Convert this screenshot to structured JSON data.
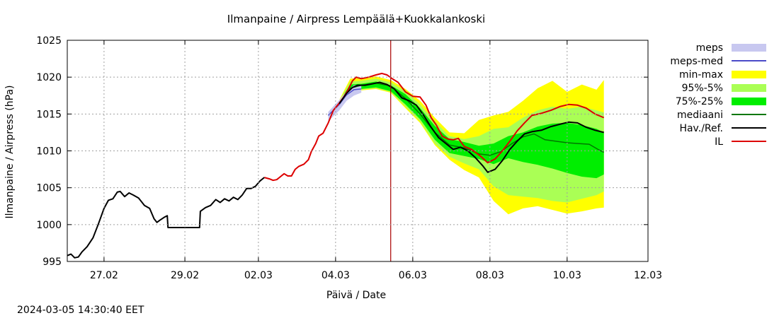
{
  "chart_data": {
    "type": "line",
    "title": "Ilmanpaine / Airpress Lempäälä+Kuokkalankoski",
    "xlabel": "Päivä / Date",
    "ylabel": "Ilmanpaine / Airpress (hPa)",
    "timestamp": "2024-03-05 14:30:40 EET",
    "xlim_days": [
      0,
      7.9
    ],
    "ylim": [
      995,
      1025
    ],
    "y_ticks": [
      995,
      1000,
      1005,
      1010,
      1015,
      1020,
      1025
    ],
    "x_ticks": [
      {
        "label": "27.02",
        "t": 0.5
      },
      {
        "label": "29.02",
        "t": 1.6
      },
      {
        "label": "02.03",
        "t": 2.6
      },
      {
        "label": "04.03",
        "t": 3.65
      },
      {
        "label": "06.03",
        "t": 4.7
      },
      {
        "label": "08.03",
        "t": 5.75
      },
      {
        "label": "10.03",
        "t": 6.8
      },
      {
        "label": "12.03",
        "t": 7.9
      }
    ],
    "grid": true,
    "legend_position": "outside-right",
    "current_time_t": 4.4,
    "colors": {
      "meps": "#c8c8f0",
      "meps_med": "#4a4ac8",
      "min_max": "#ffff00",
      "p95_5": "#aaff55",
      "p75_25": "#00ee00",
      "median": "#007700",
      "observed": "#000000",
      "il": "#dd0000",
      "now_line": "#aa0000"
    },
    "legend": [
      {
        "key": "meps",
        "label": "meps",
        "style": "band",
        "color": "#c8c8f0"
      },
      {
        "key": "meps_med",
        "label": "meps-med",
        "style": "line",
        "color": "#4a4ac8"
      },
      {
        "key": "min_max",
        "label": "min-max",
        "style": "band",
        "color": "#ffff00"
      },
      {
        "key": "p95_5",
        "label": "95%-5%",
        "style": "band",
        "color": "#aaff55"
      },
      {
        "key": "p75_25",
        "label": "75%-25%",
        "style": "band",
        "color": "#00ee00"
      },
      {
        "key": "median",
        "label": "mediaani",
        "style": "line",
        "color": "#007700"
      },
      {
        "key": "observed",
        "label": "Hav./Ref.",
        "style": "line",
        "color": "#000000"
      },
      {
        "key": "il",
        "label": "IL",
        "style": "line",
        "color": "#dd0000"
      }
    ],
    "series": {
      "observed": [
        [
          0.0,
          995.8
        ],
        [
          0.05,
          996.0
        ],
        [
          0.1,
          995.5
        ],
        [
          0.15,
          995.6
        ],
        [
          0.2,
          996.3
        ],
        [
          0.27,
          997.0
        ],
        [
          0.35,
          998.2
        ],
        [
          0.42,
          1000.0
        ],
        [
          0.5,
          1002.2
        ],
        [
          0.56,
          1003.3
        ],
        [
          0.62,
          1003.5
        ],
        [
          0.68,
          1004.4
        ],
        [
          0.72,
          1004.5
        ],
        [
          0.78,
          1003.8
        ],
        [
          0.84,
          1004.3
        ],
        [
          0.9,
          1004.0
        ],
        [
          0.97,
          1003.6
        ],
        [
          1.05,
          1002.6
        ],
        [
          1.12,
          1002.2
        ],
        [
          1.18,
          1000.8
        ],
        [
          1.22,
          1000.3
        ],
        [
          1.26,
          1000.6
        ],
        [
          1.32,
          1001.0
        ],
        [
          1.36,
          1001.2
        ],
        [
          1.37,
          999.6
        ],
        [
          1.5,
          999.6
        ],
        [
          1.65,
          999.6
        ],
        [
          1.8,
          999.6
        ],
        [
          1.81,
          1001.8
        ],
        [
          1.88,
          1002.3
        ],
        [
          1.95,
          1002.6
        ],
        [
          2.02,
          1003.4
        ],
        [
          2.08,
          1003.0
        ],
        [
          2.14,
          1003.5
        ],
        [
          2.2,
          1003.2
        ],
        [
          2.26,
          1003.7
        ],
        [
          2.32,
          1003.4
        ],
        [
          2.38,
          1004.0
        ],
        [
          2.44,
          1004.9
        ],
        [
          2.5,
          1004.9
        ],
        [
          2.56,
          1005.2
        ],
        [
          2.62,
          1005.9
        ],
        [
          2.68,
          1006.4
        ]
      ],
      "il": [
        [
          2.68,
          1006.4
        ],
        [
          2.75,
          1006.2
        ],
        [
          2.8,
          1006.0
        ],
        [
          2.85,
          1006.1
        ],
        [
          2.9,
          1006.5
        ],
        [
          2.95,
          1006.9
        ],
        [
          3.0,
          1006.6
        ],
        [
          3.05,
          1006.6
        ],
        [
          3.1,
          1007.5
        ],
        [
          3.15,
          1007.9
        ],
        [
          3.22,
          1008.2
        ],
        [
          3.28,
          1008.8
        ],
        [
          3.32,
          1009.9
        ],
        [
          3.38,
          1011.0
        ],
        [
          3.42,
          1012.0
        ],
        [
          3.48,
          1012.4
        ],
        [
          3.55,
          1013.8
        ],
        [
          3.62,
          1015.5
        ],
        [
          3.7,
          1016.5
        ],
        [
          3.76,
          1017.3
        ],
        [
          3.82,
          1018.3
        ],
        [
          3.88,
          1019.5
        ],
        [
          3.93,
          1020.0
        ],
        [
          4.0,
          1019.8
        ],
        [
          4.1,
          1020.0
        ],
        [
          4.2,
          1020.3
        ],
        [
          4.28,
          1020.5
        ],
        [
          4.35,
          1020.3
        ],
        [
          4.42,
          1019.8
        ],
        [
          4.5,
          1019.3
        ],
        [
          4.6,
          1018.0
        ],
        [
          4.7,
          1017.4
        ],
        [
          4.8,
          1017.3
        ],
        [
          4.88,
          1016.2
        ],
        [
          4.95,
          1014.5
        ],
        [
          5.02,
          1013.5
        ],
        [
          5.1,
          1012.0
        ],
        [
          5.18,
          1011.6
        ],
        [
          5.25,
          1011.5
        ],
        [
          5.32,
          1011.7
        ],
        [
          5.4,
          1010.6
        ],
        [
          5.5,
          1010.2
        ],
        [
          5.62,
          1009.3
        ],
        [
          5.72,
          1008.4
        ],
        [
          5.82,
          1008.9
        ],
        [
          5.92,
          1010.0
        ],
        [
          6.02,
          1011.3
        ],
        [
          6.12,
          1012.7
        ],
        [
          6.22,
          1013.8
        ],
        [
          6.32,
          1014.8
        ],
        [
          6.45,
          1015.1
        ],
        [
          6.58,
          1015.5
        ],
        [
          6.7,
          1016.0
        ],
        [
          6.82,
          1016.3
        ],
        [
          6.94,
          1016.2
        ],
        [
          7.06,
          1015.8
        ],
        [
          7.18,
          1015.0
        ],
        [
          7.3,
          1014.5
        ]
      ],
      "forecast_observed": [
        [
          3.7,
          1016.4
        ],
        [
          3.8,
          1017.8
        ],
        [
          3.88,
          1018.6
        ],
        [
          3.95,
          1018.9
        ],
        [
          4.05,
          1018.9
        ],
        [
          4.15,
          1019.1
        ],
        [
          4.25,
          1019.3
        ],
        [
          4.35,
          1019.0
        ],
        [
          4.45,
          1018.4
        ],
        [
          4.55,
          1017.2
        ],
        [
          4.65,
          1016.8
        ],
        [
          4.75,
          1016.2
        ],
        [
          4.85,
          1014.8
        ],
        [
          4.95,
          1013.2
        ],
        [
          5.05,
          1011.8
        ],
        [
          5.15,
          1011.0
        ],
        [
          5.25,
          1010.2
        ],
        [
          5.35,
          1010.5
        ],
        [
          5.45,
          1010.0
        ],
        [
          5.55,
          1009.1
        ],
        [
          5.65,
          1008.0
        ],
        [
          5.72,
          1007.1
        ],
        [
          5.82,
          1007.5
        ],
        [
          5.92,
          1008.7
        ],
        [
          6.02,
          1010.2
        ],
        [
          6.12,
          1011.3
        ],
        [
          6.22,
          1012.3
        ],
        [
          6.32,
          1012.6
        ],
        [
          6.45,
          1012.8
        ],
        [
          6.58,
          1013.3
        ],
        [
          6.7,
          1013.6
        ],
        [
          6.82,
          1013.9
        ],
        [
          6.94,
          1013.8
        ],
        [
          7.06,
          1013.2
        ],
        [
          7.18,
          1012.8
        ],
        [
          7.3,
          1012.5
        ]
      ],
      "median": [
        [
          3.7,
          1016.4
        ],
        [
          3.85,
          1018.5
        ],
        [
          4.0,
          1018.9
        ],
        [
          4.2,
          1019.2
        ],
        [
          4.4,
          1018.8
        ],
        [
          4.6,
          1017.1
        ],
        [
          4.8,
          1015.0
        ],
        [
          5.0,
          1012.5
        ],
        [
          5.2,
          1010.8
        ],
        [
          5.4,
          1010.4
        ],
        [
          5.6,
          1009.6
        ],
        [
          5.75,
          1009.4
        ],
        [
          5.9,
          1009.9
        ],
        [
          6.05,
          1011.0
        ],
        [
          6.2,
          1011.9
        ],
        [
          6.35,
          1012.3
        ],
        [
          6.5,
          1011.5
        ],
        [
          6.65,
          1011.3
        ],
        [
          6.8,
          1011.1
        ],
        [
          6.95,
          1011.0
        ],
        [
          7.1,
          1010.9
        ],
        [
          7.22,
          1010.2
        ],
        [
          7.3,
          1009.8
        ]
      ],
      "meps_med": [
        [
          3.55,
          1014.8
        ],
        [
          3.7,
          1016.3
        ],
        [
          3.8,
          1017.6
        ],
        [
          3.9,
          1018.3
        ],
        [
          4.0,
          1018.4
        ]
      ]
    },
    "bands": {
      "meps": [
        [
          3.55,
          1014.0,
          1015.3
        ],
        [
          3.7,
          1015.5,
          1016.9
        ],
        [
          3.8,
          1016.8,
          1018.1
        ],
        [
          3.9,
          1017.5,
          1018.9
        ],
        [
          4.0,
          1017.9,
          1019.0
        ]
      ],
      "min_max": [
        [
          3.7,
          1016.0,
          1016.9
        ],
        [
          3.85,
          1018.0,
          1019.8
        ],
        [
          4.0,
          1018.2,
          1019.9
        ],
        [
          4.2,
          1018.4,
          1020.1
        ],
        [
          4.4,
          1017.9,
          1019.6
        ],
        [
          4.6,
          1015.8,
          1018.4
        ],
        [
          4.8,
          1013.8,
          1016.8
        ],
        [
          5.0,
          1010.8,
          1014.5
        ],
        [
          5.2,
          1008.8,
          1012.5
        ],
        [
          5.4,
          1007.4,
          1012.4
        ],
        [
          5.6,
          1006.4,
          1014.2
        ],
        [
          5.8,
          1003.2,
          1014.8
        ],
        [
          6.0,
          1001.4,
          1015.3
        ],
        [
          6.2,
          1002.2,
          1016.8
        ],
        [
          6.4,
          1002.5,
          1018.5
        ],
        [
          6.6,
          1002.0,
          1019.5
        ],
        [
          6.8,
          1001.5,
          1018.0
        ],
        [
          7.0,
          1001.8,
          1019.0
        ],
        [
          7.2,
          1002.2,
          1018.3
        ],
        [
          7.3,
          1002.3,
          1019.6
        ]
      ],
      "p95_5": [
        [
          3.7,
          1016.1,
          1016.8
        ],
        [
          3.85,
          1018.1,
          1019.4
        ],
        [
          4.0,
          1018.3,
          1019.5
        ],
        [
          4.2,
          1018.5,
          1019.8
        ],
        [
          4.4,
          1018.0,
          1019.3
        ],
        [
          4.6,
          1016.0,
          1018.1
        ],
        [
          4.8,
          1014.0,
          1016.3
        ],
        [
          5.0,
          1011.0,
          1014.0
        ],
        [
          5.2,
          1009.2,
          1012.0
        ],
        [
          5.4,
          1008.3,
          1011.6
        ],
        [
          5.6,
          1007.5,
          1012.0
        ],
        [
          5.8,
          1005.2,
          1013.0
        ],
        [
          6.0,
          1004.0,
          1013.2
        ],
        [
          6.2,
          1003.8,
          1014.5
        ],
        [
          6.4,
          1003.6,
          1015.5
        ],
        [
          6.6,
          1003.2,
          1016.0
        ],
        [
          6.8,
          1003.0,
          1015.7
        ],
        [
          7.0,
          1003.5,
          1016.0
        ],
        [
          7.2,
          1004.0,
          1015.5
        ],
        [
          7.3,
          1004.5,
          1015.2
        ]
      ],
      "p75_25": [
        [
          3.7,
          1016.2,
          1016.7
        ],
        [
          3.85,
          1018.2,
          1019.0
        ],
        [
          4.0,
          1018.4,
          1019.1
        ],
        [
          4.2,
          1018.6,
          1019.4
        ],
        [
          4.4,
          1018.1,
          1018.9
        ],
        [
          4.6,
          1016.3,
          1017.7
        ],
        [
          4.8,
          1014.3,
          1015.8
        ],
        [
          5.0,
          1011.5,
          1013.4
        ],
        [
          5.2,
          1009.7,
          1011.6
        ],
        [
          5.4,
          1009.3,
          1011.2
        ],
        [
          5.6,
          1008.9,
          1010.7
        ],
        [
          5.8,
          1008.2,
          1011.0
        ],
        [
          6.0,
          1009.0,
          1012.0
        ],
        [
          6.2,
          1008.5,
          1012.5
        ],
        [
          6.4,
          1008.1,
          1013.3
        ],
        [
          6.6,
          1007.6,
          1013.7
        ],
        [
          6.8,
          1007.0,
          1013.8
        ],
        [
          7.0,
          1006.5,
          1013.5
        ],
        [
          7.2,
          1006.3,
          1013.0
        ],
        [
          7.3,
          1006.8,
          1012.5
        ]
      ]
    }
  }
}
